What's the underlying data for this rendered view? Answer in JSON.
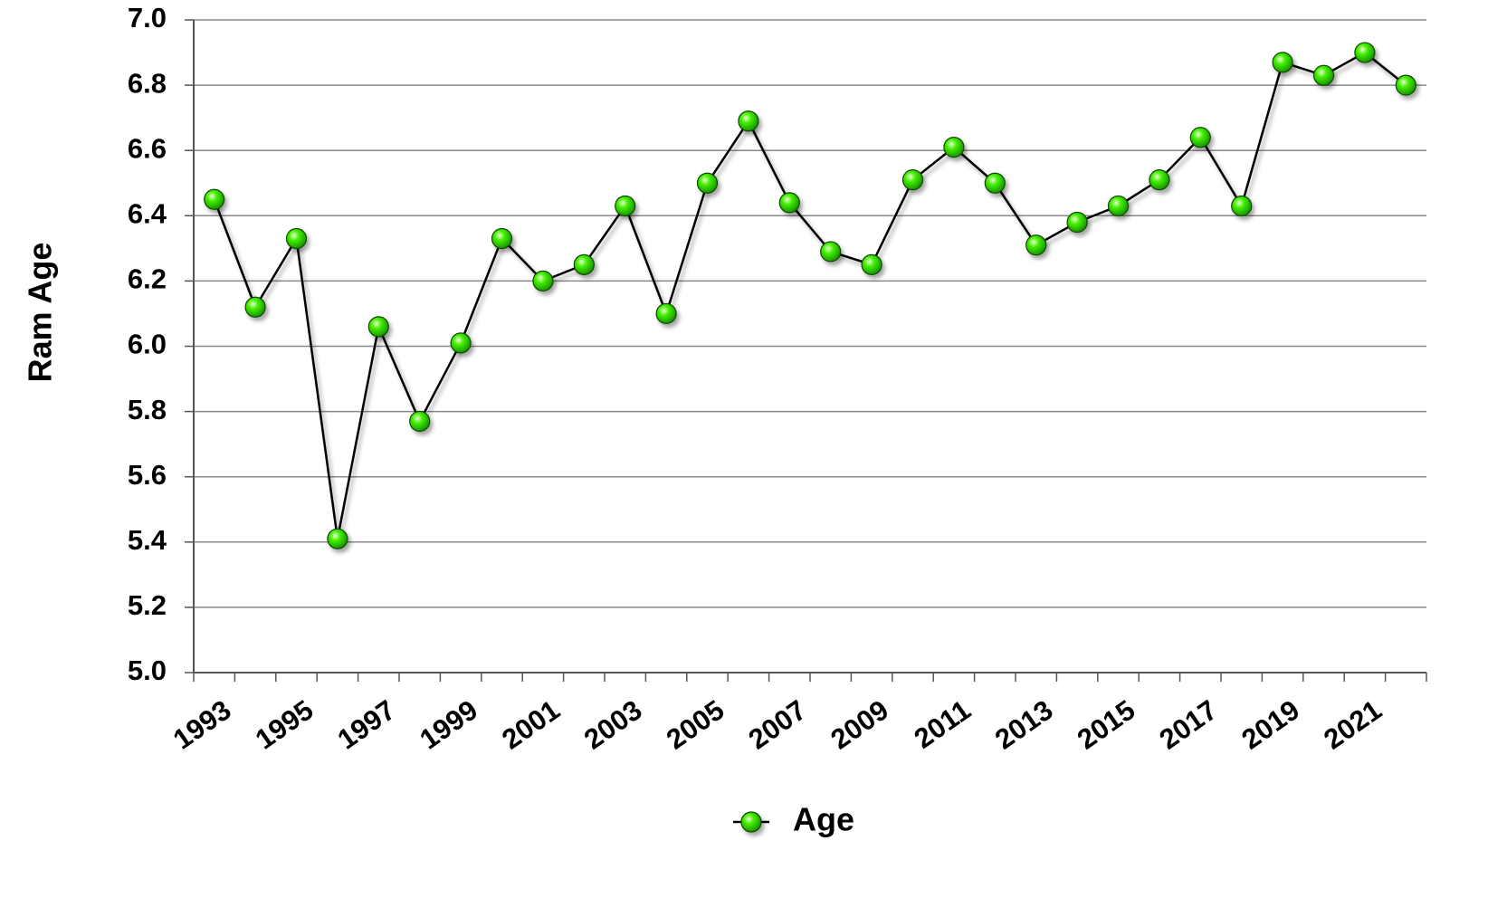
{
  "chart_data": {
    "type": "line",
    "y_label": "Ram Age",
    "categories": [
      "1993",
      null,
      "1995",
      null,
      "1997",
      null,
      "1999",
      null,
      "2001",
      null,
      "2003",
      null,
      "2005",
      null,
      "2007",
      null,
      "2009",
      null,
      "2011",
      null,
      "2013",
      null,
      "2015",
      null,
      "2017",
      null,
      "2019",
      null,
      "2021",
      null
    ],
    "series": [
      {
        "name": "Age",
        "color": "#22dd00",
        "values": [
          6.45,
          6.12,
          6.33,
          5.41,
          6.06,
          5.77,
          6.01,
          6.33,
          6.2,
          6.25,
          6.43,
          6.1,
          6.5,
          6.69,
          6.44,
          6.29,
          6.25,
          6.51,
          6.61,
          6.5,
          6.31,
          6.38,
          6.43,
          6.51,
          6.64,
          6.43,
          6.87,
          6.83,
          6.9,
          6.8
        ]
      }
    ],
    "ylim": [
      5.0,
      7.0
    ],
    "yticks": [
      {
        "value": 5.0,
        "label": "5.0"
      },
      {
        "value": 5.2,
        "label": "5.2"
      },
      {
        "value": 5.4,
        "label": "5.4"
      },
      {
        "value": 5.6,
        "label": "5.6"
      },
      {
        "value": 5.8,
        "label": "5.8"
      },
      {
        "value": 6.0,
        "label": "6.0"
      },
      {
        "value": 6.2,
        "label": "6.2"
      },
      {
        "value": 6.4,
        "label": "6.4"
      },
      {
        "value": 6.6,
        "label": "6.6"
      },
      {
        "value": 6.8,
        "label": "6.8"
      },
      {
        "value": 7.0,
        "label": "7.0"
      }
    ],
    "grid": true,
    "legend": "bottom"
  }
}
